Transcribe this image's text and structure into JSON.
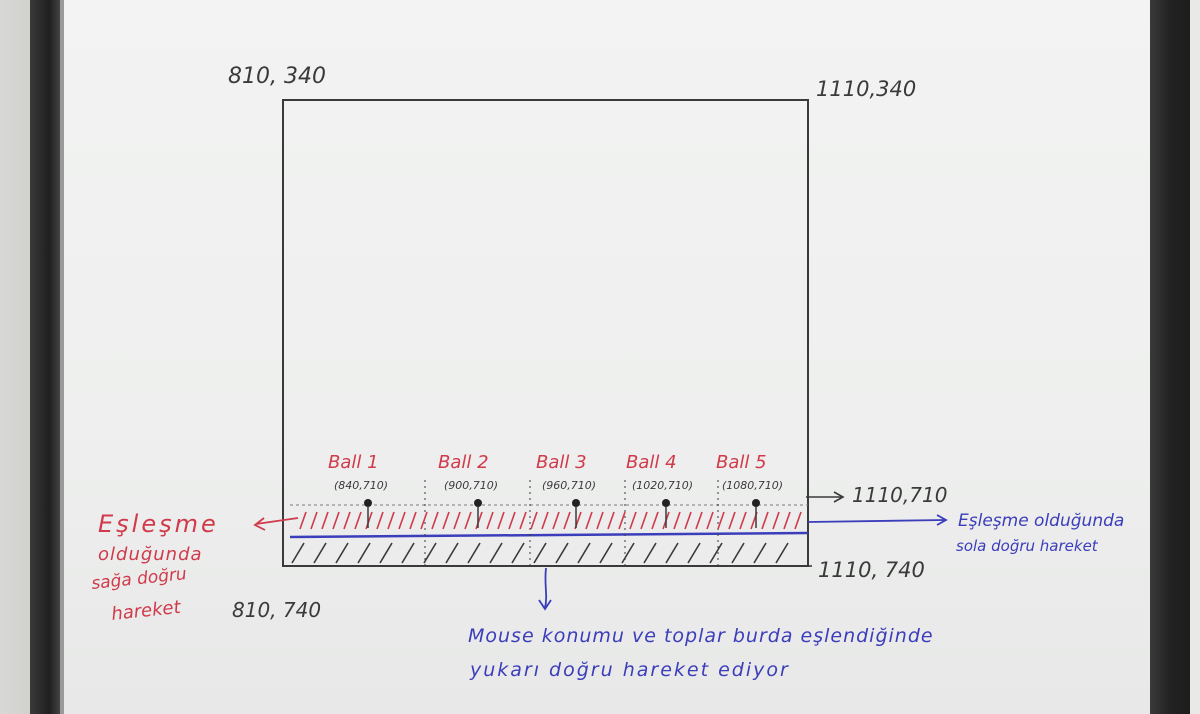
{
  "corners": {
    "top_left": "810, 340",
    "top_right": "1110,340",
    "bottom_left": "810, 740",
    "bottom_right": "1110, 740"
  },
  "balls": [
    {
      "label": "Ball 1",
      "coord": "(840,710)"
    },
    {
      "label": "Ball 2",
      "coord": "(900,710)"
    },
    {
      "label": "Ball 3",
      "coord": "(960,710)"
    },
    {
      "label": "Ball 4",
      "coord": "(1020,710)"
    },
    {
      "label": "Ball 5",
      "coord": "(1080,710)"
    }
  ],
  "ball_line_label": "1110,710",
  "notes": {
    "left": [
      "Eşleşme",
      "olduğunda",
      "sağa doğru",
      "hareket"
    ],
    "right": [
      "Eşleşme olduğunda",
      "sola doğru hareket"
    ],
    "bottom": [
      "Mouse konumu ve toplar burda eşlendiğinde",
      "yukarı doğru hareket ediyor"
    ]
  },
  "colors": {
    "ink_black": "#3a3a3a",
    "ink_red": "#d03a4a",
    "ink_blue": "#3b3dbb",
    "board": "#eeefee"
  }
}
